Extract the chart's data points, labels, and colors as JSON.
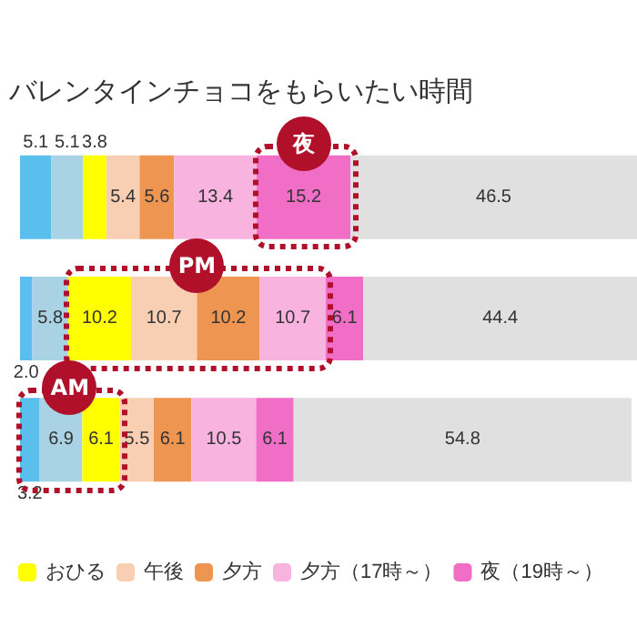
{
  "chart_data": {
    "type": "bar",
    "orientation": "horizontal",
    "stacked": true,
    "legend": "bottom",
    "title": "バレンタインチョコをもらいたい時間",
    "categories": [
      null,
      null,
      null
    ],
    "annotations": [
      "夜",
      "PM",
      "AM"
    ],
    "series": [
      {
        "color": "#5bbfee",
        "values": [
          5.1,
          2.0,
          3.2
        ],
        "value_labels": [
          "5.1",
          "2.0",
          "3.2"
        ]
      },
      {
        "color": "#a9d3e4",
        "values": [
          5.1,
          5.8,
          6.9
        ],
        "value_labels": [
          "5.1",
          "5.8",
          "6.9"
        ]
      },
      {
        "name": "おひる",
        "color": "#ffff00",
        "values": [
          3.8,
          10.2,
          6.1
        ],
        "value_labels": [
          "3.8",
          "10.2",
          "6.1"
        ]
      },
      {
        "name": "午後",
        "color": "#f8cfb2",
        "values": [
          5.4,
          10.7,
          5.5
        ],
        "value_labels": [
          "5.4",
          "10.7",
          "5.5"
        ]
      },
      {
        "name": "夕方",
        "color": "#ef9552",
        "values": [
          5.6,
          10.2,
          6.1
        ],
        "value_labels": [
          "5.6",
          "10.2",
          "6.1"
        ]
      },
      {
        "name": "夕方（17時～）",
        "color": "#f8b3df",
        "values": [
          13.4,
          10.7,
          10.5
        ],
        "value_labels": [
          "13.4",
          "10.7",
          "10.5"
        ]
      },
      {
        "name": "夜（19時～）",
        "color": "#f06ec6",
        "values": [
          15.2,
          6.1,
          6.1
        ],
        "value_labels": [
          "15.2",
          "6.1",
          "6.1"
        ]
      },
      {
        "color": "#e0e0e0",
        "values": [
          46.5,
          44.4,
          54.8
        ],
        "value_labels": [
          "46.5",
          "44.4",
          "54.8"
        ]
      }
    ]
  }
}
